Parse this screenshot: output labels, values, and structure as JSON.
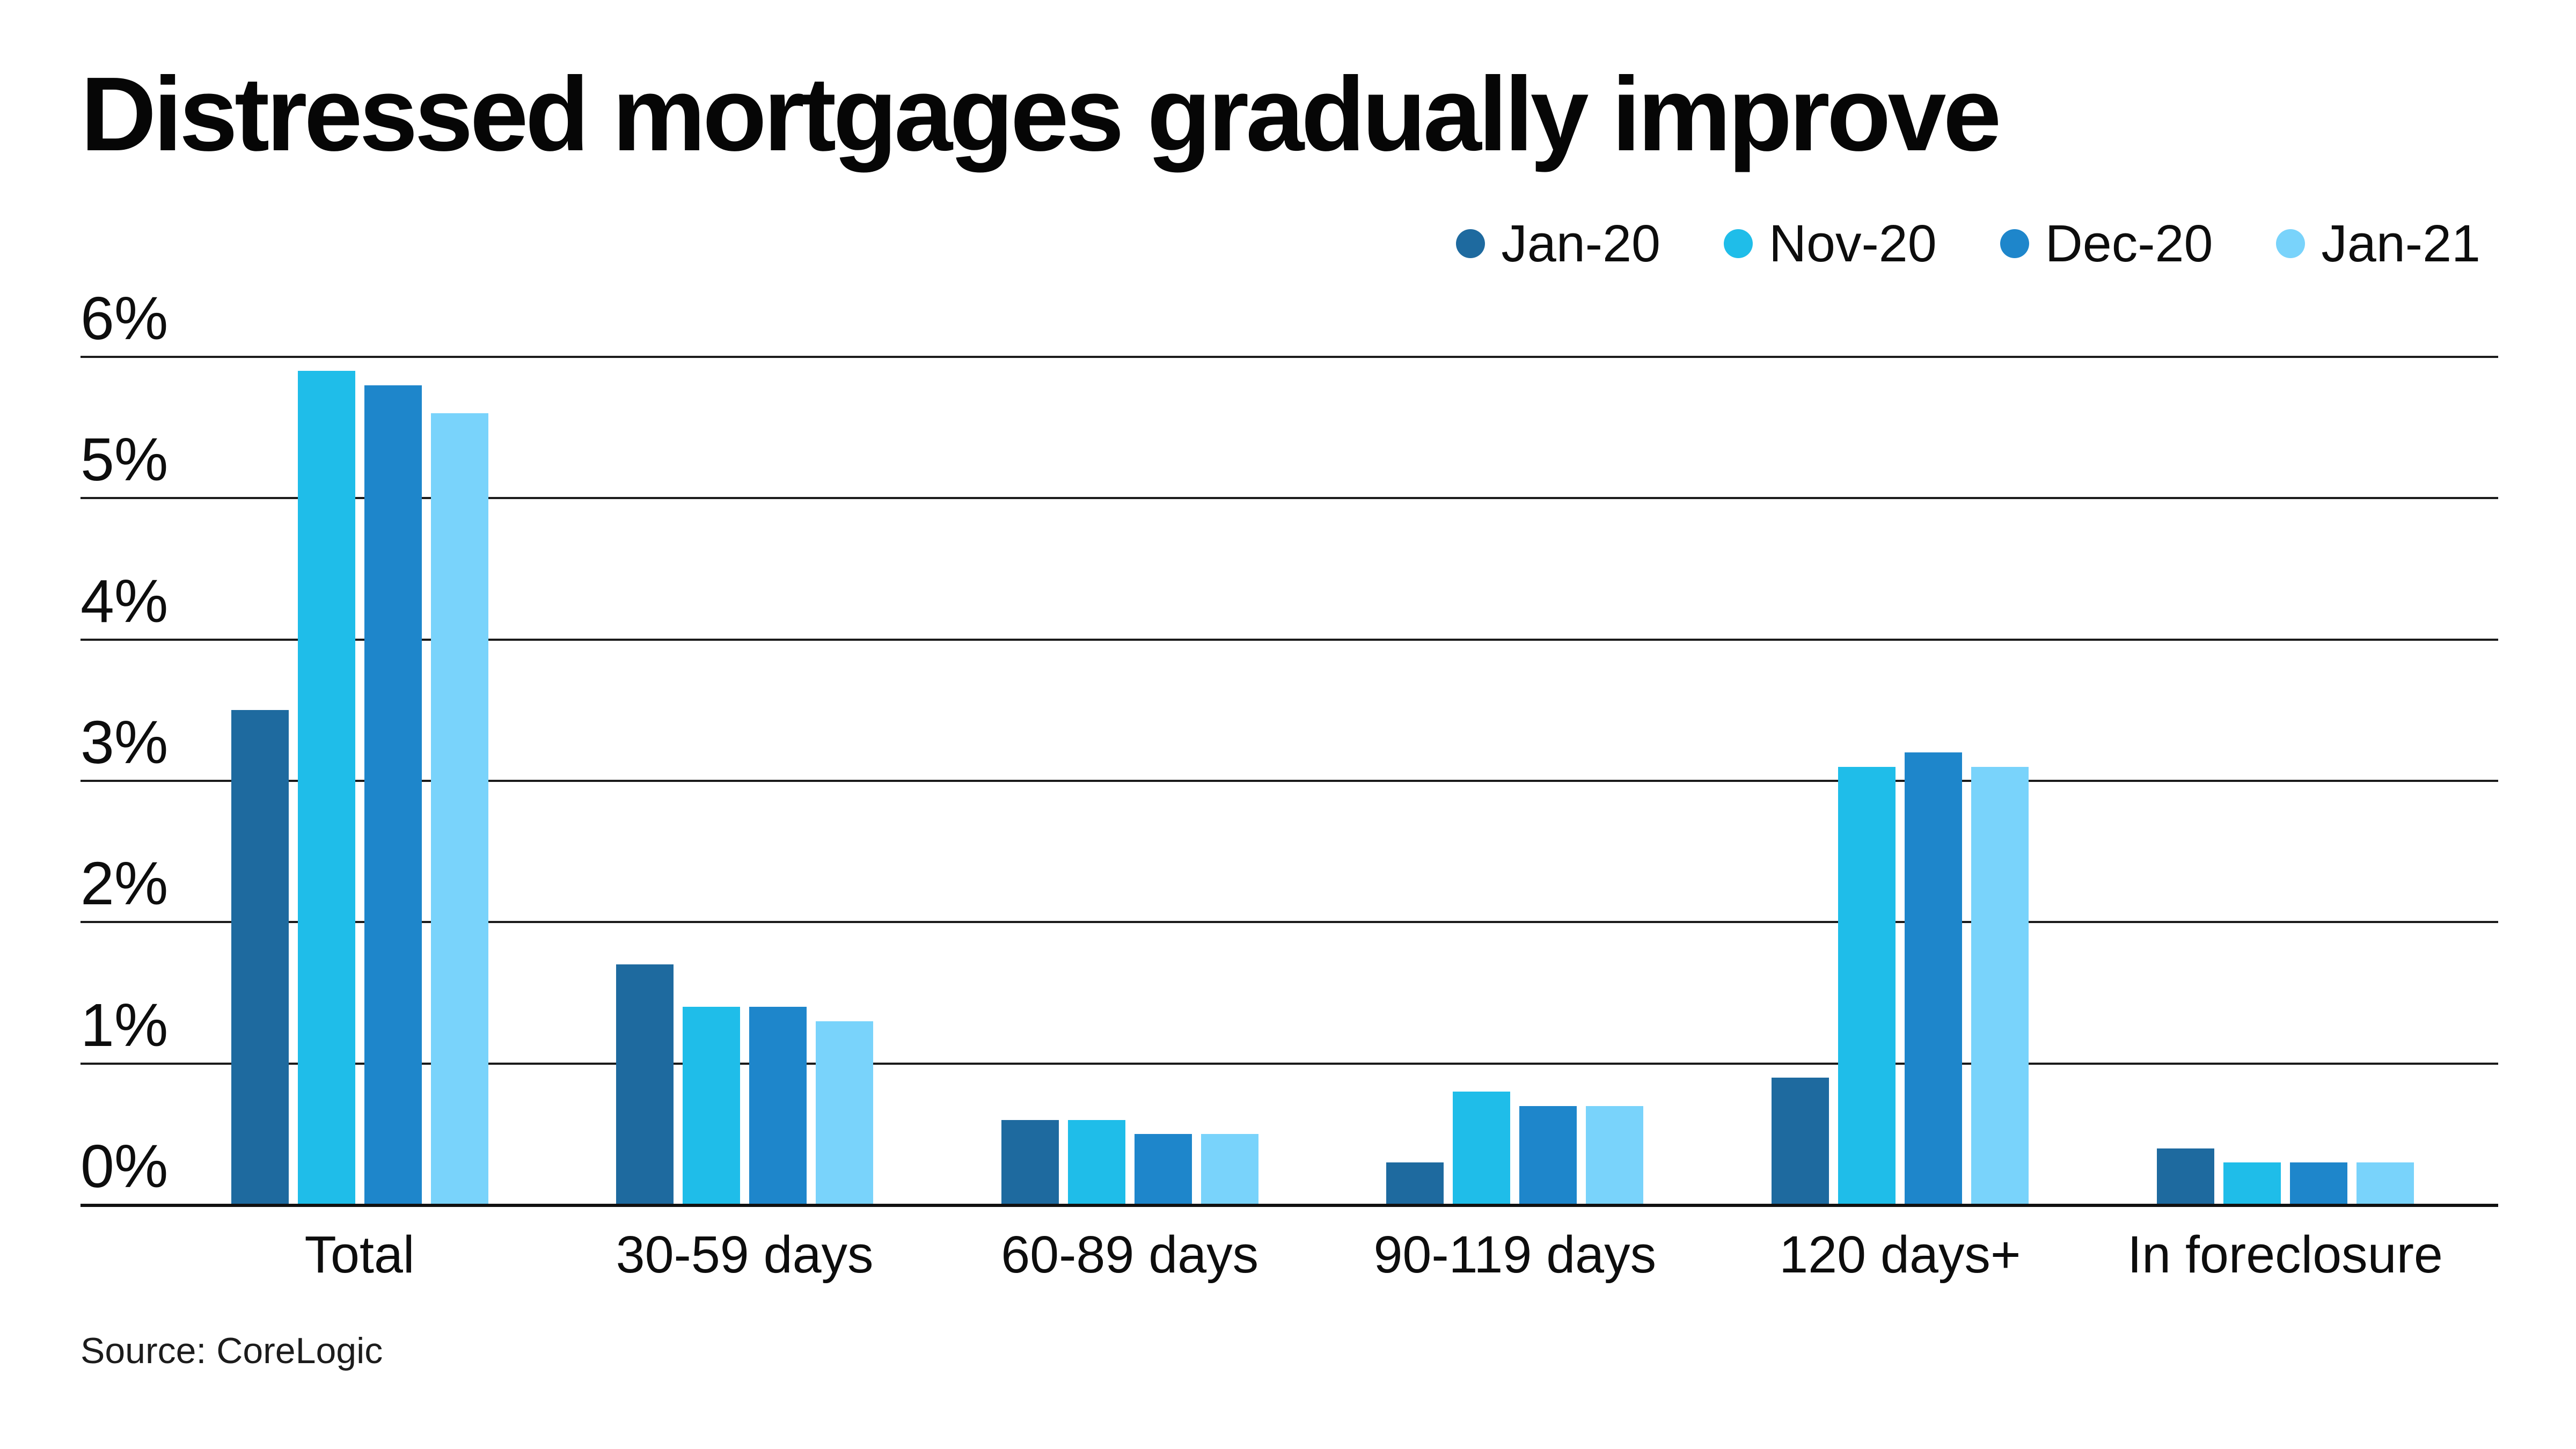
{
  "header": {
    "title": "Distressed mortgages gradually improve"
  },
  "footer": {
    "source": "Source: CoreLogic"
  },
  "legend": {
    "position": "top-right",
    "items": [
      {
        "label": "Jan-20",
        "color": "#1e6a9f"
      },
      {
        "label": "Nov-20",
        "color": "#1fbde9"
      },
      {
        "label": "Dec-20",
        "color": "#1e86cb"
      },
      {
        "label": "Jan-21",
        "color": "#79d3fb"
      }
    ]
  },
  "chart_data": {
    "type": "bar",
    "title": "Distressed mortgages gradually improve",
    "categories": [
      "Total",
      "30-59 days",
      "60-89 days",
      "90-119 days",
      "120 days+",
      "In foreclosure"
    ],
    "series": [
      {
        "name": "Jan-20",
        "color": "#1e6a9f",
        "values": [
          3.5,
          1.7,
          0.6,
          0.3,
          0.9,
          0.4
        ]
      },
      {
        "name": "Nov-20",
        "color": "#1fbde9",
        "values": [
          5.9,
          1.4,
          0.6,
          0.8,
          3.1,
          0.3
        ]
      },
      {
        "name": "Dec-20",
        "color": "#1e86cb",
        "values": [
          5.8,
          1.4,
          0.5,
          0.7,
          3.2,
          0.3
        ]
      },
      {
        "name": "Jan-21",
        "color": "#79d3fb",
        "values": [
          5.6,
          1.3,
          0.5,
          0.7,
          3.1,
          0.3
        ]
      }
    ],
    "xlabel": "",
    "ylabel": "",
    "ylim": [
      0,
      6
    ],
    "yticks": [
      0,
      1,
      2,
      3,
      4,
      5,
      6
    ],
    "ytick_suffix": "%",
    "grid": "horizontal",
    "legend_position": "top-right",
    "source": "Source: CoreLogic"
  }
}
